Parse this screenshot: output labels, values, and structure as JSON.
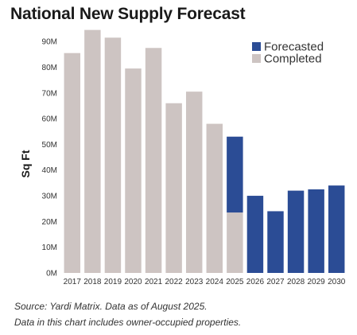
{
  "chart_data": {
    "type": "bar",
    "stacked": true,
    "title": "National New Supply Forecast",
    "ylabel": "Sq Ft",
    "xlabel": "",
    "categories": [
      "2017",
      "2018",
      "2019",
      "2020",
      "2021",
      "2022",
      "2023",
      "2024",
      "2025",
      "2026",
      "2027",
      "2028",
      "2029",
      "2030"
    ],
    "ylim": [
      0,
      95000000
    ],
    "yticks": [
      0,
      10000000,
      20000000,
      30000000,
      40000000,
      50000000,
      60000000,
      70000000,
      80000000,
      90000000
    ],
    "ytick_labels": [
      "0M",
      "10M",
      "20M",
      "30M",
      "40M",
      "50M",
      "60M",
      "70M",
      "80M",
      "90M"
    ],
    "series": [
      {
        "name": "Completed",
        "color": "#cdc4c2",
        "values": [
          85500000,
          94500000,
          91500000,
          79500000,
          87500000,
          66000000,
          70500000,
          58000000,
          23500000,
          0,
          0,
          0,
          0,
          0
        ]
      },
      {
        "name": "Forecasted",
        "color": "#2b4c95",
        "values": [
          0,
          0,
          0,
          0,
          0,
          0,
          0,
          0,
          29500000,
          30000000,
          24000000,
          32000000,
          32500000,
          34000000
        ]
      }
    ],
    "legend": {
      "position": "top-right",
      "order": [
        "Forecasted",
        "Completed"
      ]
    },
    "grid": false
  },
  "footnotes": {
    "source": "Source: Yardi Matrix. Data as of August 2025.",
    "note": "Data in this chart includes owner-occupied properties."
  }
}
